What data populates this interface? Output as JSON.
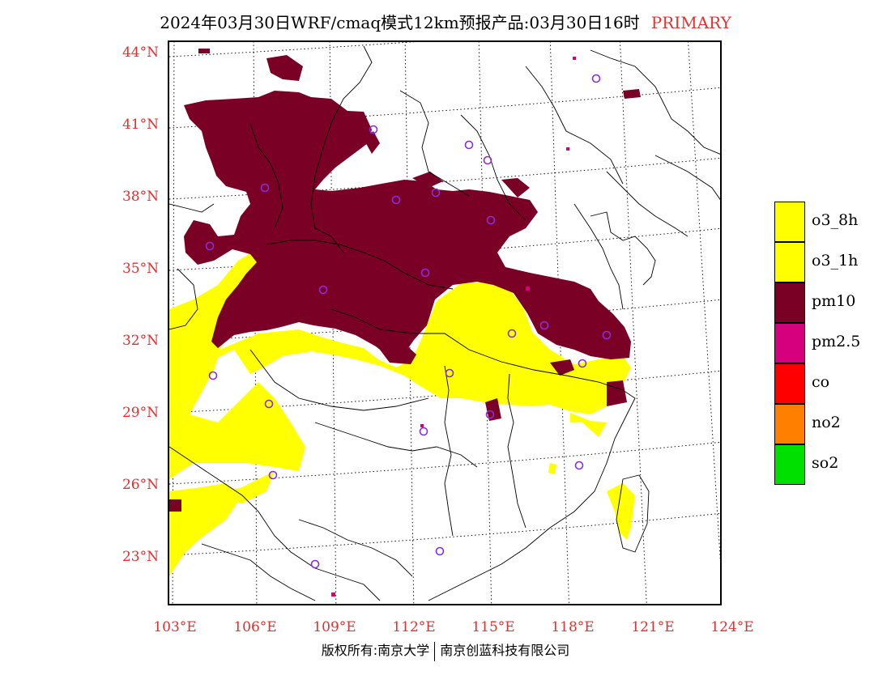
{
  "title": {
    "text": "2024年03月30日WRF/cmaq模式12km预报产品:03月30日16时",
    "tag": "PRIMARY"
  },
  "map": {
    "lat_labels": [
      "44°N",
      "41°N",
      "38°N",
      "35°N",
      "32°N",
      "29°N",
      "26°N",
      "23°N"
    ],
    "lon_labels": [
      "103°E",
      "106°E",
      "109°E",
      "112°E",
      "115°E",
      "118°E",
      "121°E",
      "124°E"
    ],
    "colors": {
      "o3": "#ffff00",
      "pm10": "#7a0026",
      "pm25": "#d6007f",
      "station_marker": "#8a2be2",
      "graticule": "#000000",
      "boundary": "#000000"
    },
    "station_markers": 26
  },
  "legend": [
    {
      "label": "o3_8h",
      "color": "#ffff00"
    },
    {
      "label": "o3_1h",
      "color": "#ffff00"
    },
    {
      "label": "pm10",
      "color": "#7a0026"
    },
    {
      "label": "pm2.5",
      "color": "#d6007f"
    },
    {
      "label": "co",
      "color": "#ff0000"
    },
    {
      "label": "no2",
      "color": "#ff7f00"
    },
    {
      "label": "so2",
      "color": "#00e000"
    }
  ],
  "footer": {
    "left": "版权所有:南京大学",
    "right": "南京创蓝科技有限公司"
  }
}
